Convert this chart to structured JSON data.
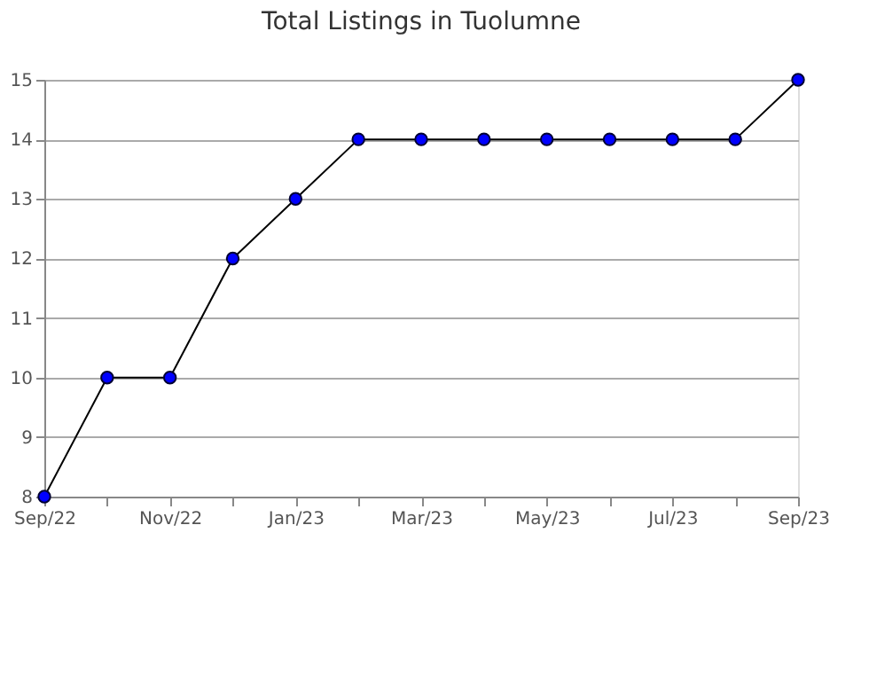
{
  "chart_data": {
    "type": "line",
    "title": "Total Listings in Tuolumne",
    "categories": [
      "Sep/22",
      null,
      "Nov/22",
      null,
      "Jan/23",
      null,
      "Mar/23",
      null,
      "May/23",
      null,
      "Jul/23",
      null,
      "Sep/23"
    ],
    "series": [
      {
        "color": "#0000ff",
        "values": [
          8,
          10,
          10,
          12,
          13,
          14,
          14,
          14,
          14,
          14,
          14,
          14,
          15
        ]
      }
    ],
    "ylim": [
      8,
      15
    ],
    "yticks": [
      8,
      9,
      10,
      11,
      12,
      13,
      14,
      15
    ],
    "grid": "y",
    "marker": "circle",
    "line_style": "solid"
  }
}
